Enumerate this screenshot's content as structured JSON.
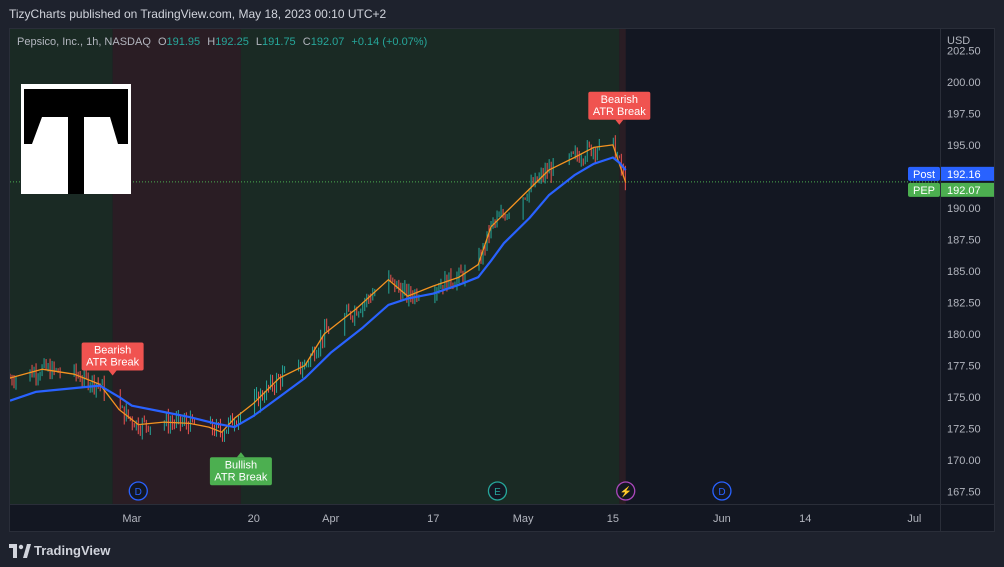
{
  "header": {
    "published": "TizyCharts published on TradingView.com, May 18, 2023 00:10 UTC+2"
  },
  "legend": {
    "title": "Pepsico, Inc., 1h, NASDAQ",
    "open_label": "O",
    "open": "191.95",
    "high_label": "H",
    "high": "192.25",
    "low_label": "L",
    "low": "191.75",
    "close_label": "C",
    "close": "192.07",
    "change": "+0.14 (+0.07%)"
  },
  "footer": {
    "brand": "TradingView"
  },
  "colors": {
    "bull_bg": "#1a2a24",
    "bear_bg": "#2a1d24",
    "ema_fast": "#f59320",
    "ema_slow": "#2962ff",
    "candle_up": "#26a69a",
    "candle_down": "#ef5350",
    "label_bearish": "#f05350",
    "label_bullish": "#4caf50"
  },
  "chart_data": {
    "type": "line",
    "title": "Pepsico, Inc., 1h, NASDAQ",
    "currency": "USD",
    "y_ticks": [
      "202.50",
      "200.00",
      "197.50",
      "195.00",
      "192.50",
      "190.00",
      "187.50",
      "185.00",
      "182.50",
      "180.00",
      "177.50",
      "175.00",
      "172.50",
      "170.00",
      "167.50"
    ],
    "ylim": [
      166.5,
      204.2
    ],
    "x_ticks": [
      "Mar",
      "20",
      "Apr",
      "17",
      "May",
      "15",
      "Jun",
      "14",
      "Jul"
    ],
    "x_tick_dates": [
      "2023-03-01",
      "2023-03-20",
      "2023-04-01",
      "2023-04-17",
      "2023-05-01",
      "2023-05-15",
      "2023-06-01",
      "2023-06-14",
      "2023-07-01"
    ],
    "xlim": [
      "2023-02-10",
      "2023-07-05"
    ],
    "data_end": "2023-05-17",
    "series": [
      {
        "name": "Price",
        "color": "#f59320",
        "points": [
          [
            "2023-02-10",
            176.5
          ],
          [
            "2023-02-15",
            177.2
          ],
          [
            "2023-02-20",
            176.8
          ],
          [
            "2023-02-24",
            176.0
          ],
          [
            "2023-02-27",
            174.0
          ],
          [
            "2023-03-02",
            172.8
          ],
          [
            "2023-03-06",
            173.0
          ],
          [
            "2023-03-10",
            172.9
          ],
          [
            "2023-03-13",
            172.6
          ],
          [
            "2023-03-15",
            172.2
          ],
          [
            "2023-03-17",
            173.3
          ],
          [
            "2023-03-20",
            174.5
          ],
          [
            "2023-03-24",
            176.5
          ],
          [
            "2023-03-28",
            177.5
          ],
          [
            "2023-03-31",
            180.0
          ],
          [
            "2023-04-05",
            182.0
          ],
          [
            "2023-04-10",
            184.3
          ],
          [
            "2023-04-13",
            183.0
          ],
          [
            "2023-04-17",
            183.8
          ],
          [
            "2023-04-21",
            184.5
          ],
          [
            "2023-04-24",
            185.5
          ],
          [
            "2023-04-26",
            188.5
          ],
          [
            "2023-04-28",
            189.5
          ],
          [
            "2023-05-02",
            191.5
          ],
          [
            "2023-05-05",
            193.0
          ],
          [
            "2023-05-09",
            194.0
          ],
          [
            "2023-05-12",
            194.8
          ],
          [
            "2023-05-15",
            195.0
          ],
          [
            "2023-05-16",
            193.5
          ],
          [
            "2023-05-17",
            192.0
          ]
        ]
      },
      {
        "name": "Trend",
        "color": "#2962ff",
        "points": [
          [
            "2023-02-10",
            174.7
          ],
          [
            "2023-02-14",
            175.4
          ],
          [
            "2023-02-20",
            175.7
          ],
          [
            "2023-02-24",
            175.9
          ],
          [
            "2023-02-27",
            175.0
          ],
          [
            "2023-03-01",
            174.3
          ],
          [
            "2023-03-06",
            173.8
          ],
          [
            "2023-03-10",
            173.4
          ],
          [
            "2023-03-14",
            172.9
          ],
          [
            "2023-03-17",
            172.6
          ],
          [
            "2023-03-20",
            173.5
          ],
          [
            "2023-03-24",
            175.0
          ],
          [
            "2023-03-28",
            176.5
          ],
          [
            "2023-04-01",
            178.5
          ],
          [
            "2023-04-06",
            180.5
          ],
          [
            "2023-04-10",
            182.3
          ],
          [
            "2023-04-13",
            182.8
          ],
          [
            "2023-04-17",
            183.2
          ],
          [
            "2023-04-21",
            183.9
          ],
          [
            "2023-04-24",
            184.5
          ],
          [
            "2023-04-26",
            185.8
          ],
          [
            "2023-04-28",
            187.2
          ],
          [
            "2023-05-02",
            189.2
          ],
          [
            "2023-05-05",
            191.0
          ],
          [
            "2023-05-09",
            192.6
          ],
          [
            "2023-05-12",
            193.5
          ],
          [
            "2023-05-15",
            194.0
          ],
          [
            "2023-05-16",
            193.6
          ],
          [
            "2023-05-17",
            193.0
          ]
        ]
      }
    ],
    "regions": [
      {
        "from": "2023-02-10",
        "to": "2023-02-26",
        "state": "bullish"
      },
      {
        "from": "2023-02-26",
        "to": "2023-03-18",
        "state": "bearish"
      },
      {
        "from": "2023-03-18",
        "to": "2023-05-16",
        "state": "bullish"
      },
      {
        "from": "2023-05-16",
        "to": "2023-05-17",
        "state": "bearish"
      }
    ],
    "signals": [
      {
        "date": "2023-02-26",
        "price": 176.3,
        "type": "bearish",
        "text": [
          "Bearish",
          "ATR Break"
        ],
        "position": "above"
      },
      {
        "date": "2023-03-18",
        "price": 171.0,
        "type": "bullish",
        "text": [
          "Bullish",
          "ATR Break"
        ],
        "position": "below"
      },
      {
        "date": "2023-05-16",
        "price": 196.2,
        "type": "bearish",
        "text": [
          "Bearish",
          "ATR Break"
        ],
        "position": "above"
      }
    ],
    "events": [
      {
        "date": "2023-03-02",
        "symbol": "D",
        "color": "#2962ff"
      },
      {
        "date": "2023-04-27",
        "symbol": "E",
        "color": "#26a69a"
      },
      {
        "date": "2023-05-17",
        "symbol": "⚡",
        "color": "#ab47bc"
      },
      {
        "date": "2023-06-01",
        "symbol": "D",
        "color": "#2962ff"
      }
    ],
    "price_labels": [
      {
        "name": "Post",
        "value": 192.16,
        "text": "192.16",
        "bg": "#2962ff",
        "value_bg": "#2962ff"
      },
      {
        "name": "PEP",
        "value": 192.07,
        "text": "192.07",
        "bg": "#4caf50",
        "value_bg": "#4caf50"
      }
    ],
    "grid": false
  }
}
